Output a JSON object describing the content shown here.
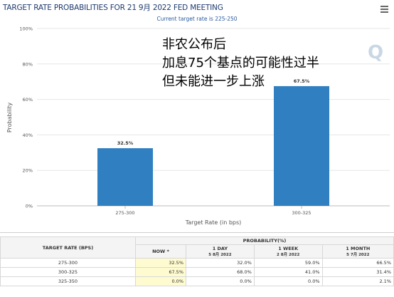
{
  "header": {
    "title": "TARGET RATE PROBABILITIES FOR 21 9月 2022 FED MEETING",
    "subtitle": "Current target rate is 225-250"
  },
  "overlay_text": [
    "非农公布后",
    "加息75个基点的可能性过半",
    "但未能进一步上涨"
  ],
  "watermark": "Q",
  "chart_data": {
    "type": "bar",
    "categories": [
      "275-300",
      "300-325"
    ],
    "values": [
      32.5,
      67.5
    ],
    "value_labels": [
      "32.5%",
      "67.5%"
    ],
    "xlabel": "Target Rate (in bps)",
    "ylabel": "Probability",
    "ylim": [
      0,
      100
    ],
    "yticks": [
      "0%",
      "20%",
      "40%",
      "60%",
      "80%",
      "100%"
    ],
    "bar_color": "#2f7fc1",
    "grid": true
  },
  "table": {
    "row_header": "TARGET RATE (BPS)",
    "group_header": "PROBABILITY(%)",
    "columns": [
      {
        "label": "NOW *",
        "sub": ""
      },
      {
        "label": "1 DAY",
        "sub": "5 8月 2022"
      },
      {
        "label": "1 WEEK",
        "sub": "2 8月 2022"
      },
      {
        "label": "1 MONTH",
        "sub": "5 7月 2022"
      }
    ],
    "rows": [
      {
        "rate": "275-300",
        "values": [
          "32.5%",
          "32.0%",
          "59.0%",
          "66.5%"
        ]
      },
      {
        "rate": "300-325",
        "values": [
          "67.5%",
          "68.0%",
          "41.0%",
          "31.4%"
        ]
      },
      {
        "rate": "325-350",
        "values": [
          "0.0%",
          "0.0%",
          "0.0%",
          "2.1%"
        ]
      }
    ]
  }
}
